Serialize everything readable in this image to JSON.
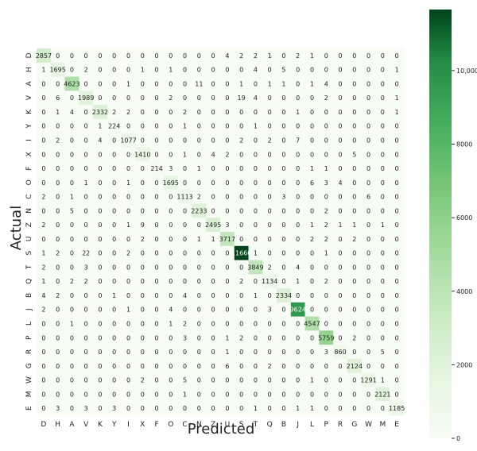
{
  "chart_data": {
    "type": "heatmap",
    "title": "",
    "xlabel": "Predicted",
    "ylabel": "Actual",
    "x_categories": [
      "D",
      "H",
      "A",
      "V",
      "K",
      "Y",
      "I",
      "X",
      "F",
      "O",
      "C",
      "N",
      "Z",
      "U",
      "S",
      "T",
      "Q",
      "B",
      "J",
      "L",
      "P",
      "R",
      "G",
      "W",
      "M",
      "E"
    ],
    "y_categories": [
      "D",
      "H",
      "A",
      "V",
      "K",
      "Y",
      "I",
      "X",
      "F",
      "O",
      "C",
      "N",
      "Z",
      "U",
      "S",
      "T",
      "Q",
      "B",
      "J",
      "L",
      "P",
      "R",
      "G",
      "W",
      "M",
      "E"
    ],
    "values": [
      [
        2857,
        0,
        0,
        0,
        0,
        0,
        0,
        0,
        0,
        0,
        0,
        0,
        0,
        4,
        2,
        2,
        1,
        0,
        2,
        1,
        0,
        0,
        0,
        0,
        0,
        0
      ],
      [
        1,
        1695,
        0,
        2,
        0,
        0,
        0,
        1,
        0,
        1,
        0,
        0,
        0,
        0,
        0,
        4,
        0,
        5,
        0,
        0,
        0,
        0,
        0,
        0,
        0,
        1
      ],
      [
        0,
        0,
        4623,
        0,
        0,
        0,
        1,
        0,
        0,
        0,
        0,
        11,
        0,
        0,
        1,
        0,
        1,
        1,
        0,
        1,
        4,
        0,
        0,
        0,
        0,
        0
      ],
      [
        0,
        6,
        0,
        1989,
        0,
        0,
        0,
        0,
        0,
        2,
        0,
        0,
        0,
        0,
        19,
        4,
        0,
        0,
        0,
        0,
        2,
        0,
        0,
        0,
        0,
        1
      ],
      [
        0,
        1,
        4,
        0,
        2332,
        2,
        2,
        0,
        0,
        0,
        2,
        0,
        0,
        0,
        0,
        0,
        0,
        0,
        1,
        0,
        0,
        0,
        0,
        0,
        0,
        1
      ],
      [
        0,
        0,
        0,
        0,
        1,
        224,
        0,
        0,
        0,
        0,
        1,
        0,
        0,
        0,
        0,
        1,
        0,
        0,
        0,
        0,
        0,
        0,
        0,
        0,
        0,
        0
      ],
      [
        0,
        2,
        0,
        0,
        4,
        0,
        1077,
        0,
        0,
        0,
        0,
        0,
        0,
        0,
        2,
        0,
        2,
        0,
        7,
        0,
        0,
        0,
        0,
        0,
        0,
        0
      ],
      [
        0,
        0,
        0,
        0,
        0,
        0,
        0,
        1410,
        0,
        0,
        1,
        0,
        4,
        2,
        0,
        0,
        0,
        0,
        0,
        0,
        0,
        0,
        5,
        0,
        0,
        0
      ],
      [
        0,
        0,
        0,
        0,
        0,
        0,
        0,
        0,
        214,
        3,
        0,
        1,
        0,
        0,
        0,
        0,
        0,
        0,
        0,
        1,
        1,
        0,
        0,
        0,
        0,
        0
      ],
      [
        0,
        0,
        0,
        1,
        0,
        0,
        1,
        0,
        0,
        1695,
        0,
        0,
        0,
        0,
        0,
        0,
        0,
        0,
        0,
        6,
        3,
        4,
        0,
        0,
        0,
        0
      ],
      [
        2,
        0,
        1,
        0,
        0,
        0,
        0,
        0,
        0,
        0,
        1113,
        2,
        0,
        0,
        0,
        0,
        0,
        3,
        0,
        0,
        0,
        0,
        0,
        6,
        0,
        0
      ],
      [
        0,
        0,
        5,
        0,
        0,
        0,
        0,
        0,
        0,
        0,
        0,
        2233,
        0,
        0,
        0,
        0,
        0,
        0,
        0,
        0,
        2,
        0,
        0,
        0,
        0,
        0
      ],
      [
        2,
        0,
        0,
        0,
        0,
        0,
        1,
        9,
        0,
        0,
        0,
        0,
        2495,
        3,
        0,
        0,
        0,
        0,
        0,
        1,
        2,
        1,
        1,
        0,
        1,
        0
      ],
      [
        0,
        0,
        0,
        0,
        0,
        0,
        0,
        2,
        0,
        0,
        0,
        1,
        1,
        3717,
        0,
        0,
        0,
        0,
        0,
        2,
        2,
        0,
        2,
        0,
        0,
        0
      ],
      [
        1,
        2,
        0,
        22,
        0,
        0,
        2,
        0,
        0,
        0,
        0,
        0,
        0,
        0,
        11660,
        1,
        0,
        0,
        0,
        0,
        1,
        0,
        0,
        0,
        0,
        0
      ],
      [
        2,
        0,
        0,
        3,
        0,
        0,
        0,
        0,
        0,
        0,
        0,
        0,
        0,
        0,
        0,
        3849,
        2,
        0,
        4,
        0,
        0,
        0,
        0,
        0,
        0,
        0
      ],
      [
        1,
        0,
        2,
        2,
        0,
        0,
        0,
        0,
        0,
        0,
        0,
        0,
        0,
        0,
        2,
        0,
        1134,
        0,
        1,
        0,
        2,
        0,
        0,
        0,
        0,
        0
      ],
      [
        4,
        2,
        0,
        0,
        0,
        1,
        0,
        0,
        0,
        0,
        4,
        0,
        0,
        0,
        0,
        1,
        0,
        2334,
        0,
        0,
        0,
        0,
        0,
        0,
        0,
        0
      ],
      [
        2,
        0,
        0,
        0,
        0,
        0,
        1,
        0,
        0,
        4,
        0,
        0,
        0,
        0,
        0,
        0,
        3,
        0,
        9624,
        0,
        0,
        0,
        0,
        0,
        0,
        0
      ],
      [
        0,
        0,
        1,
        0,
        0,
        0,
        0,
        0,
        0,
        1,
        2,
        0,
        0,
        0,
        0,
        0,
        0,
        0,
        0,
        4547,
        0,
        0,
        0,
        0,
        0,
        0
      ],
      [
        0,
        0,
        0,
        0,
        0,
        0,
        0,
        0,
        0,
        0,
        3,
        0,
        0,
        1,
        2,
        0,
        0,
        0,
        0,
        0,
        5759,
        0,
        2,
        0,
        0,
        0
      ],
      [
        0,
        0,
        0,
        0,
        0,
        0,
        0,
        0,
        0,
        0,
        0,
        0,
        0,
        1,
        0,
        0,
        0,
        0,
        0,
        0,
        3,
        860,
        0,
        0,
        5,
        0
      ],
      [
        0,
        0,
        0,
        0,
        0,
        0,
        0,
        0,
        0,
        0,
        0,
        0,
        0,
        6,
        0,
        0,
        2,
        0,
        0,
        0,
        0,
        0,
        2124,
        0,
        0,
        0
      ],
      [
        0,
        0,
        0,
        0,
        0,
        0,
        0,
        2,
        0,
        0,
        5,
        0,
        0,
        0,
        0,
        0,
        0,
        0,
        0,
        1,
        0,
        0,
        0,
        1291,
        1,
        0
      ],
      [
        0,
        0,
        0,
        0,
        0,
        0,
        0,
        0,
        0,
        0,
        1,
        0,
        0,
        0,
        0,
        0,
        0,
        0,
        0,
        0,
        0,
        0,
        0,
        0,
        2121,
        0
      ],
      [
        0,
        3,
        0,
        3,
        0,
        3,
        0,
        0,
        0,
        0,
        0,
        0,
        0,
        0,
        0,
        1,
        0,
        0,
        1,
        1,
        0,
        0,
        0,
        0,
        0,
        1185
      ]
    ],
    "colorbar": {
      "min": 0,
      "max": 11660,
      "ticks": [
        0,
        2000,
        4000,
        6000,
        8000,
        10000
      ],
      "tick_labels": [
        "0",
        "2000",
        "4000",
        "6000",
        "8000",
        "10,000"
      ]
    },
    "colors": {
      "low": "#f7fcf5",
      "mid": "#74c476",
      "high": "#00441b",
      "text_dark": "#222222",
      "text_light": "#ffffff"
    },
    "grid": false,
    "legend": "right"
  }
}
